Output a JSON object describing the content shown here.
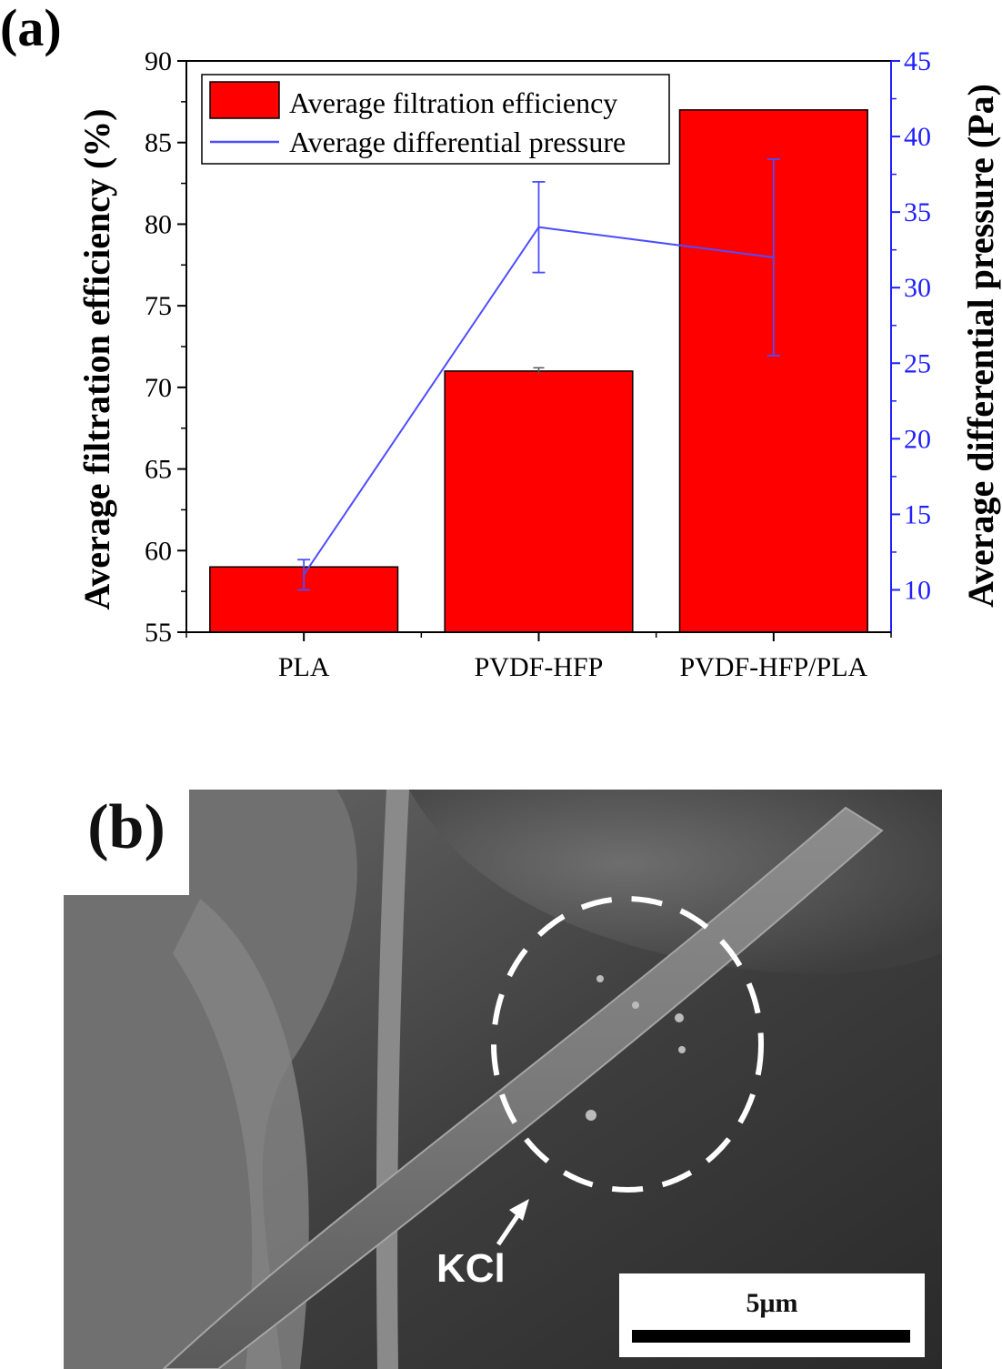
{
  "panel_a_label": "(a)",
  "panel_b_label": "(b)",
  "chart_data": {
    "type": "bar",
    "categories": [
      "PLA",
      "PVDF-HFP",
      "PVDF-HFP/PLA"
    ],
    "series": [
      {
        "name": "Average filtration efficiency",
        "type": "bar",
        "axis": "left",
        "values": [
          59.0,
          71.0,
          87.0
        ],
        "errors": [
          0.0,
          0.2,
          0.0
        ]
      },
      {
        "name": "Average differential pressure",
        "type": "line",
        "axis": "right",
        "values": [
          11.0,
          34.0,
          32.0
        ],
        "errors": [
          1.0,
          3.0,
          6.5
        ]
      }
    ],
    "ylabel": "Average filtration efficiency (%)",
    "y2label": "Average differential pressure (Pa)",
    "ylim": [
      55,
      90
    ],
    "y2lim": [
      7.2,
      45
    ],
    "yticks": [
      55,
      60,
      65,
      70,
      75,
      80,
      85,
      90
    ],
    "y2ticks": [
      10,
      15,
      20,
      25,
      30,
      35,
      40,
      45
    ],
    "legend_position": "top-left",
    "colors": {
      "bar": "#ff0000",
      "line": "#4d4dff",
      "right_axis": "#1f1fff"
    }
  },
  "sem_image": {
    "annotation": "KCl",
    "scale_bar_label": "5μm"
  }
}
